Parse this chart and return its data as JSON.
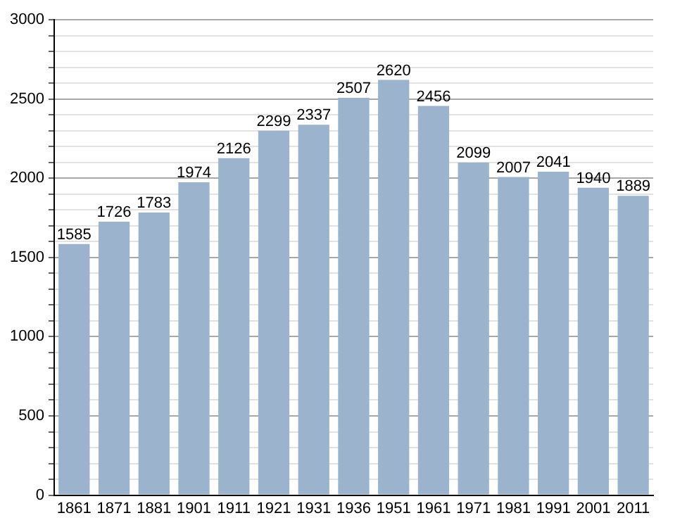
{
  "chart_data": {
    "type": "bar",
    "categories": [
      "1861",
      "1871",
      "1881",
      "1901",
      "1911",
      "1921",
      "1931",
      "1936",
      "1951",
      "1961",
      "1971",
      "1981",
      "1991",
      "2001",
      "2011"
    ],
    "values": [
      1585,
      1726,
      1783,
      1974,
      2126,
      2299,
      2337,
      2507,
      2620,
      2456,
      2099,
      2007,
      2041,
      1940,
      1889
    ],
    "color": "#9bb3cc",
    "ylim": [
      0,
      3000
    ],
    "yticks": [
      0,
      {
        "value": 100,
        "label": null
      },
      {
        "value": 200,
        "label": null
      },
      {
        "value": 300,
        "label": null
      },
      {
        "value": 400,
        "label": null
      },
      500,
      {
        "value": 600,
        "label": null
      },
      {
        "value": 700,
        "label": null
      },
      {
        "value": 800,
        "label": null
      },
      {
        "value": 900,
        "label": null
      },
      1000,
      {
        "value": 1100,
        "label": null
      },
      {
        "value": 1200,
        "label": null
      },
      {
        "value": 1300,
        "label": null
      },
      {
        "value": 1400,
        "label": null
      },
      1500,
      {
        "value": 1600,
        "label": null
      },
      {
        "value": 1700,
        "label": null
      },
      {
        "value": 1800,
        "label": null
      },
      {
        "value": 1900,
        "label": null
      },
      2000,
      {
        "value": 2100,
        "label": null
      },
      {
        "value": 2200,
        "label": null
      },
      {
        "value": 2300,
        "label": null
      },
      {
        "value": 2400,
        "label": null
      },
      2500,
      {
        "value": 2600,
        "label": null
      },
      {
        "value": 2700,
        "label": null
      },
      {
        "value": 2800,
        "label": null
      },
      {
        "value": 2900,
        "label": null
      },
      3000
    ],
    "grid": "y",
    "data_labels": true
  }
}
